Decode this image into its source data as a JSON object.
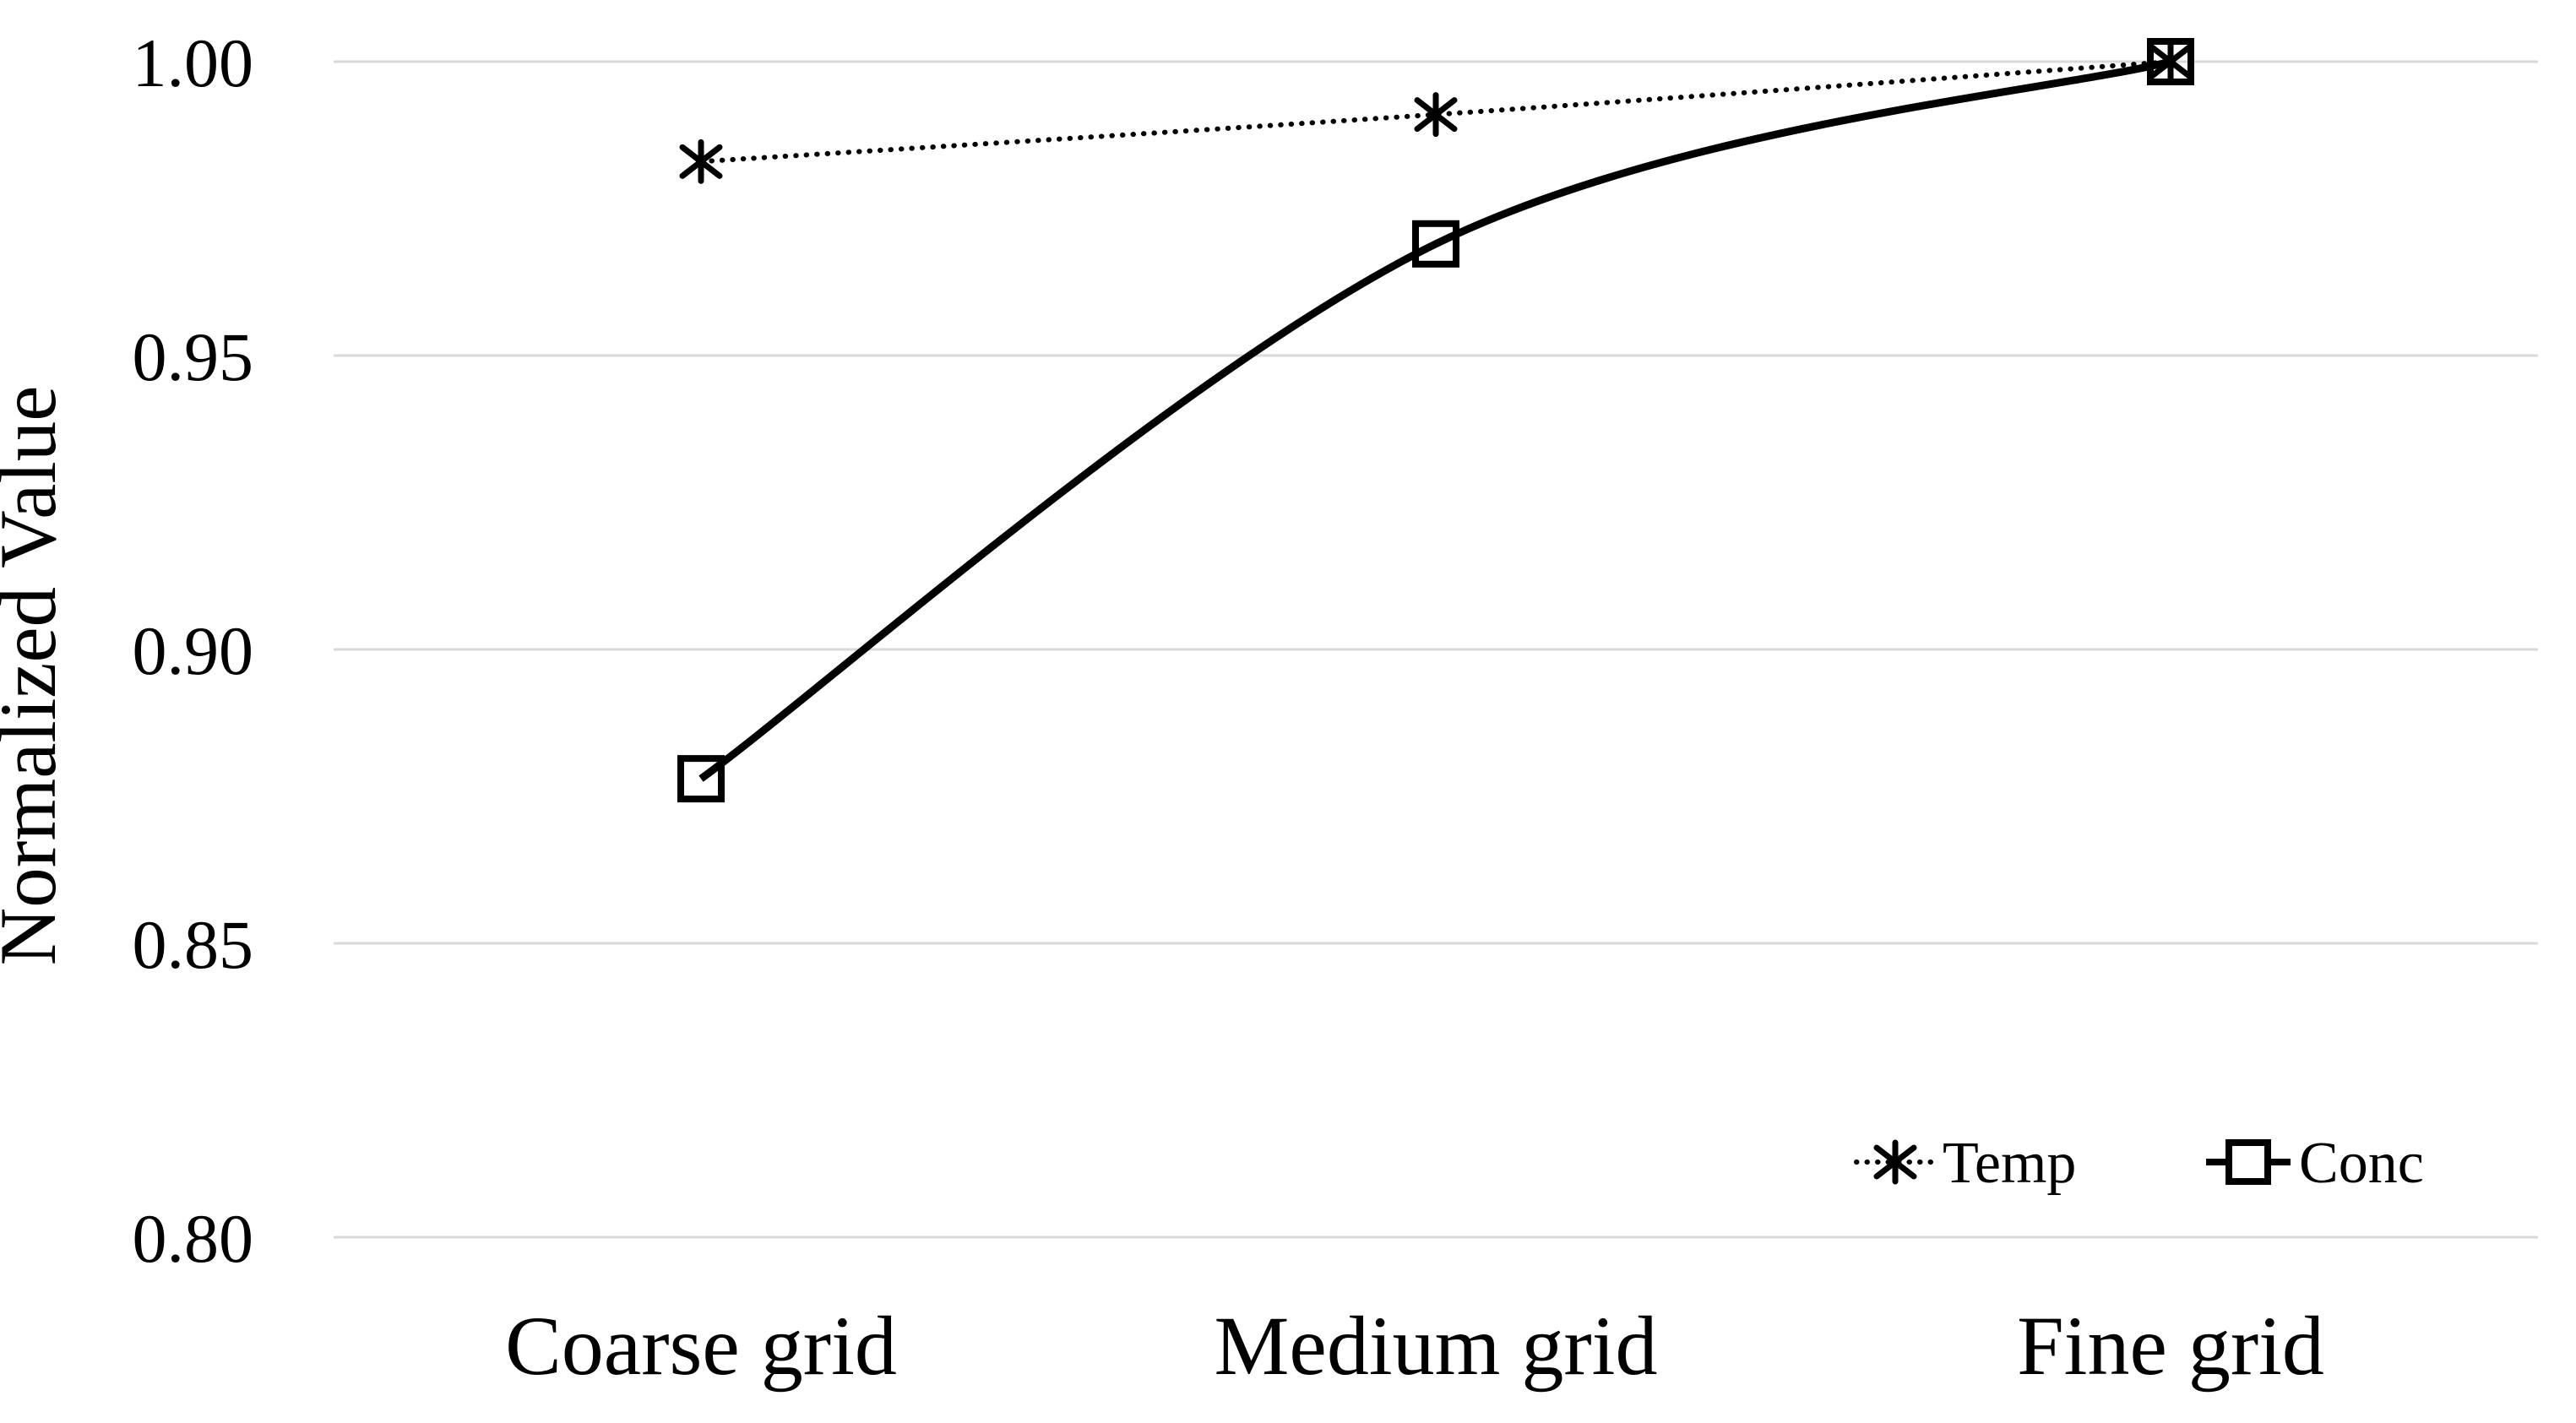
{
  "chart_data": {
    "type": "line",
    "title": "",
    "categories": [
      "Coarse grid",
      "Medium grid",
      "Fine grid"
    ],
    "series": [
      {
        "name": "Temp",
        "values": [
          0.983,
          0.991,
          1.0
        ],
        "line_style": "dotted",
        "marker": "asterisk",
        "color": "#000000"
      },
      {
        "name": "Conc",
        "values": [
          0.878,
          0.969,
          1.0
        ],
        "line_style": "solid",
        "marker": "open-square",
        "color": "#000000"
      }
    ],
    "xlabel": "",
    "ylabel": "Normalized Value",
    "ylim": [
      0.8,
      1.0
    ],
    "yticks": [
      "1.00",
      "0.95",
      "0.90",
      "0.85",
      "0.80"
    ],
    "ytick_values": [
      1.0,
      0.95,
      0.9,
      0.85,
      0.8
    ],
    "grid": "horizontal-only",
    "gridline_color": "#d9d9d9",
    "legend_position": "inside-bottom-right",
    "smooth_lines": true,
    "background": "#ffffff"
  }
}
